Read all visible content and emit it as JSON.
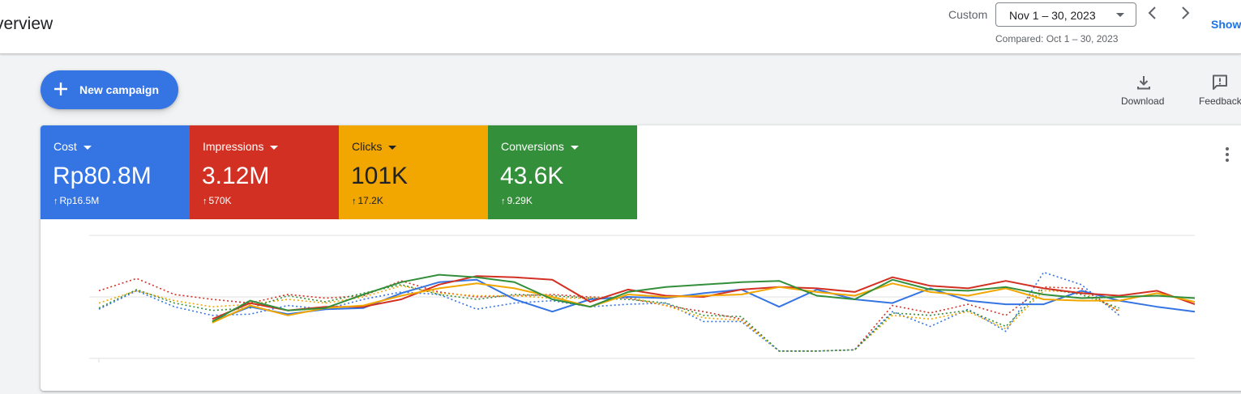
{
  "header": {
    "title": "verview",
    "range_label": "Custom",
    "date_range": "Nov 1 – 30, 2023",
    "compared": "Compared: Oct 1 – 30, 2023",
    "show_label": "Show"
  },
  "actions": {
    "new_campaign": "New campaign",
    "download": "Download",
    "feedback": "Feedback"
  },
  "metrics": [
    {
      "name": "Cost",
      "value": "Rp80.8M",
      "delta": "Rp16.5M",
      "color": "#3574e3"
    },
    {
      "name": "Impressions",
      "value": "3.12M",
      "delta": "570K",
      "color": "#d23022"
    },
    {
      "name": "Clicks",
      "value": "101K",
      "delta": "17.2K",
      "color": "#f2a600"
    },
    {
      "name": "Conversions",
      "value": "43.6K",
      "delta": "9.29K",
      "color": "#348f3a"
    }
  ],
  "icons": {
    "add": "plus-icon",
    "download": "download-icon",
    "feedback": "feedback-icon",
    "prev": "chevron-left-icon",
    "next": "chevron-right-icon",
    "menu": "more-vert-icon"
  },
  "chart_data": {
    "type": "line",
    "x_count": 30,
    "ylim": [
      0,
      100
    ],
    "grid": true,
    "series": [
      {
        "color": "#3574e3",
        "style": "solid",
        "values": [
          null,
          null,
          null,
          30,
          42,
          36,
          40,
          41,
          53,
          62,
          64,
          48,
          38,
          48,
          50,
          49,
          53,
          56,
          42,
          56,
          48,
          45,
          57,
          47,
          44,
          44,
          55,
          47,
          42,
          38
        ]
      },
      {
        "color": "#d23022",
        "style": "solid",
        "values": [
          null,
          null,
          null,
          32,
          45,
          39,
          42,
          42,
          48,
          60,
          67,
          66,
          64,
          46,
          56,
          51,
          50,
          56,
          58,
          57,
          54,
          66,
          59,
          57,
          63,
          57,
          53,
          51,
          55,
          44
        ]
      },
      {
        "color": "#f2a600",
        "style": "solid",
        "values": [
          null,
          null,
          null,
          29,
          43,
          35,
          41,
          43,
          51,
          57,
          61,
          57,
          50,
          42,
          52,
          50,
          51,
          52,
          58,
          54,
          51,
          61,
          54,
          51,
          57,
          48,
          47,
          47,
          53,
          46
        ]
      },
      {
        "color": "#348f3a",
        "style": "solid",
        "values": [
          null,
          null,
          null,
          30,
          47,
          39,
          41,
          52,
          62,
          68,
          66,
          62,
          48,
          42,
          54,
          58,
          60,
          62,
          63,
          51,
          48,
          64,
          56,
          55,
          58,
          52,
          49,
          50,
          51,
          49
        ]
      },
      {
        "color": "#3574e3",
        "style": "dotted",
        "values": [
          40,
          55,
          42,
          35,
          36,
          43,
          40,
          48,
          54,
          52,
          40,
          45,
          47,
          42,
          44,
          45,
          30,
          30,
          6,
          6,
          7,
          38,
          26,
          40,
          22,
          70,
          60,
          35,
          null,
          null
        ]
      },
      {
        "color": "#d23022",
        "style": "dotted",
        "values": [
          55,
          65,
          52,
          48,
          45,
          52,
          49,
          51,
          63,
          54,
          50,
          51,
          52,
          50,
          49,
          43,
          38,
          32,
          6,
          6,
          7,
          43,
          37,
          44,
          35,
          58,
          57,
          38,
          null,
          null
        ]
      },
      {
        "color": "#f2a600",
        "style": "dotted",
        "values": [
          45,
          55,
          47,
          42,
          44,
          48,
          45,
          50,
          59,
          53,
          51,
          51,
          49,
          49,
          50,
          43,
          33,
          31,
          6,
          6,
          7,
          35,
          32,
          38,
          24,
          55,
          54,
          39,
          null,
          null
        ]
      },
      {
        "color": "#348f3a",
        "style": "dotted",
        "values": [
          41,
          56,
          45,
          39,
          41,
          51,
          46,
          53,
          60,
          52,
          48,
          52,
          51,
          49,
          48,
          45,
          35,
          34,
          6,
          6,
          7,
          37,
          35,
          39,
          26,
          57,
          52,
          41,
          null,
          null
        ]
      }
    ]
  }
}
